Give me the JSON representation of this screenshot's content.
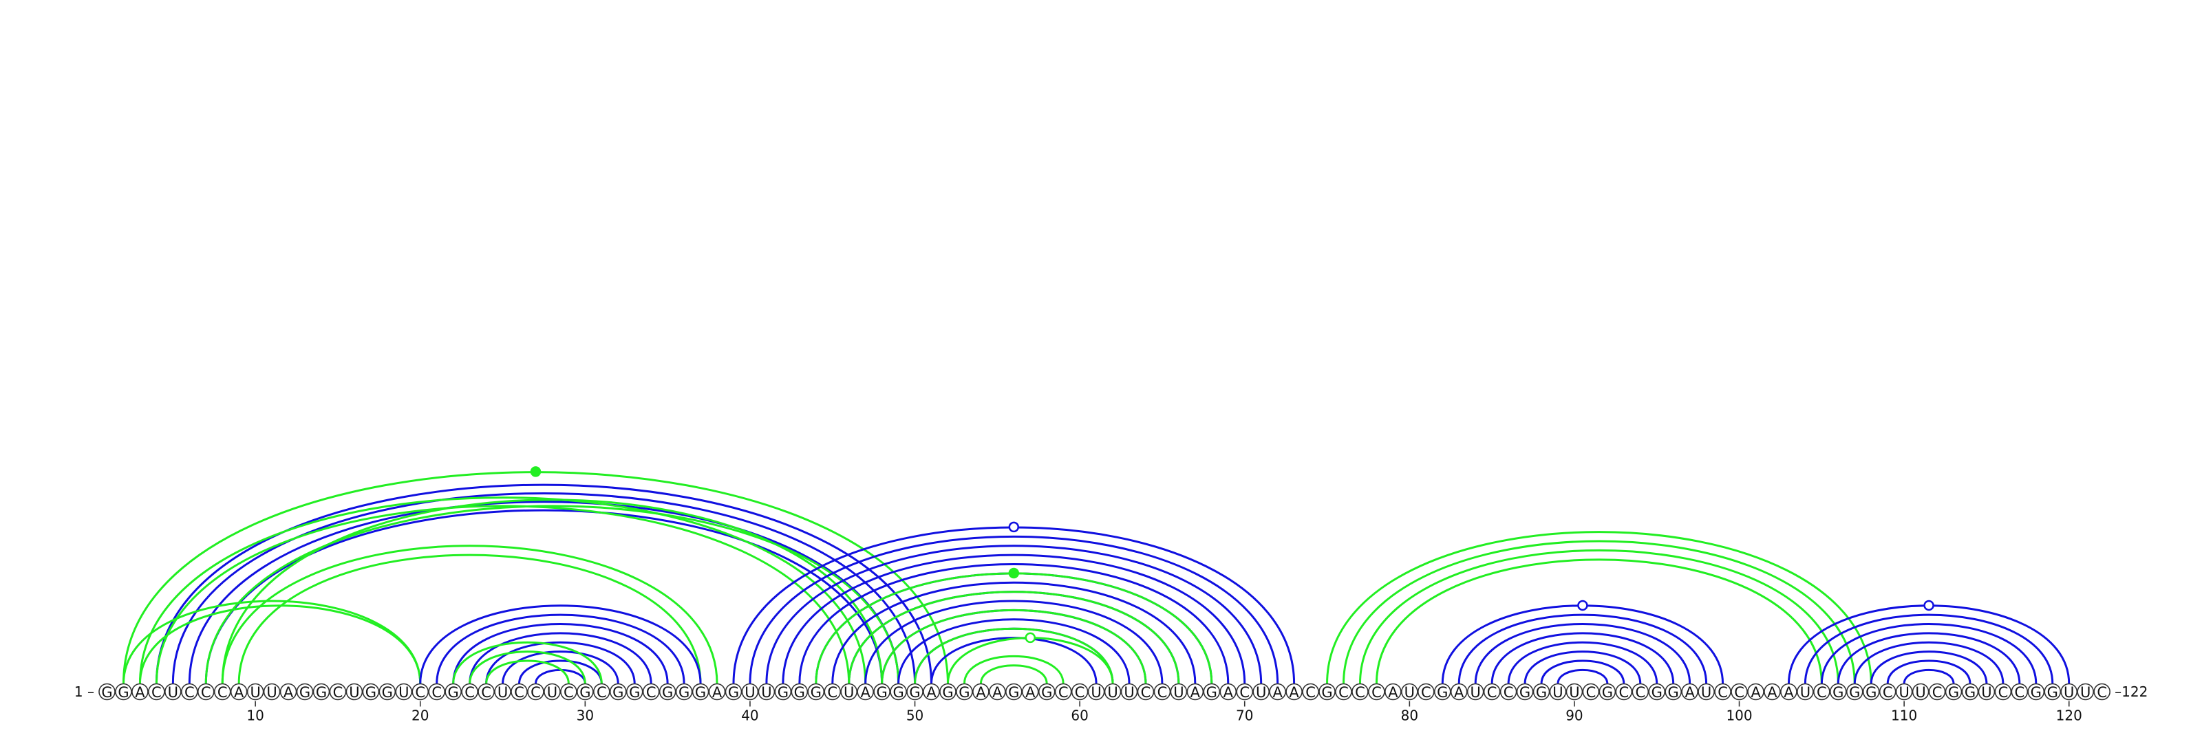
{
  "sequence": "GGACUCCCAUUAGGCUGGUCCGCCUCCUCGCGGCGGGAGUUGGGCUAGGGAGGAAGAGCCUUUCCUAGACUAACGCCCAUCGAUCCGGUUCGCCGGAUCCAAAUCGGGCUUCGGUCCGGUUC",
  "labels": {
    "start": "1 –",
    "end": "–122"
  },
  "ticks": [
    10,
    20,
    30,
    40,
    50,
    60,
    70,
    80,
    90,
    100,
    110,
    120
  ],
  "colors": {
    "blue": "#1010e0",
    "green": "#22ee22"
  },
  "chart_data": {
    "type": "arc",
    "sequence_length": 122,
    "x_ticks": [
      10,
      20,
      30,
      40,
      50,
      60,
      70,
      80,
      90,
      100,
      110,
      120
    ],
    "arcs": [
      {
        "color": "blue",
        "pairs": [
          [
            4,
            51
          ],
          [
            5,
            50
          ],
          [
            6,
            49
          ],
          [
            7,
            48
          ]
        ],
        "hairpin_marker": "none"
      },
      {
        "color": "green",
        "pairs": [
          [
            2,
            52
          ]
        ],
        "hairpin_marker": "filled"
      },
      {
        "color": "green",
        "pairs": [
          [
            3,
            47
          ],
          [
            4,
            46
          ]
        ]
      },
      {
        "color": "green",
        "pairs": [
          [
            7,
            49
          ],
          [
            8,
            48
          ]
        ]
      },
      {
        "color": "green",
        "pairs": [
          [
            8,
            38
          ],
          [
            9,
            37
          ]
        ]
      },
      {
        "color": "green",
        "pairs": [
          [
            2,
            20
          ],
          [
            3,
            20
          ]
        ]
      },
      {
        "color": "blue",
        "pairs": [
          [
            20,
            37
          ],
          [
            21,
            36
          ],
          [
            22,
            35
          ],
          [
            23,
            34
          ],
          [
            24,
            33
          ],
          [
            25,
            32
          ],
          [
            26,
            31
          ],
          [
            27,
            30
          ]
        ]
      },
      {
        "color": "green",
        "pairs": [
          [
            22,
            31
          ],
          [
            23,
            30
          ],
          [
            24,
            29
          ]
        ]
      },
      {
        "color": "blue",
        "pairs": [
          [
            39,
            73
          ],
          [
            40,
            72
          ],
          [
            41,
            71
          ],
          [
            42,
            70
          ],
          [
            43,
            69
          ],
          [
            44,
            68
          ],
          [
            45,
            67
          ],
          [
            46,
            66
          ],
          [
            47,
            65
          ],
          [
            48,
            64
          ],
          [
            49,
            63
          ],
          [
            50,
            62
          ],
          [
            51,
            61
          ]
        ],
        "hairpin_marker": "open"
      },
      {
        "color": "green",
        "pairs": [
          [
            44,
            68
          ],
          [
            46,
            66
          ],
          [
            48,
            64
          ],
          [
            50,
            62
          ]
        ],
        "hairpin_marker": "filled"
      },
      {
        "color": "green",
        "pairs": [
          [
            52,
            62
          ]
        ],
        "hairpin_marker": "open"
      },
      {
        "color": "green",
        "pairs": [
          [
            53,
            59
          ],
          [
            54,
            58
          ]
        ]
      },
      {
        "color": "green",
        "pairs": [
          [
            75,
            108
          ],
          [
            76,
            107
          ],
          [
            77,
            106
          ],
          [
            78,
            105
          ]
        ]
      },
      {
        "color": "blue",
        "pairs": [
          [
            82,
            99
          ],
          [
            83,
            98
          ],
          [
            84,
            97
          ],
          [
            85,
            96
          ],
          [
            86,
            95
          ],
          [
            87,
            94
          ],
          [
            88,
            93
          ],
          [
            89,
            92
          ]
        ],
        "hairpin_marker": "open"
      },
      {
        "color": "blue",
        "pairs": [
          [
            103,
            120
          ],
          [
            104,
            119
          ],
          [
            105,
            118
          ],
          [
            106,
            117
          ],
          [
            107,
            116
          ],
          [
            108,
            115
          ],
          [
            109,
            114
          ],
          [
            110,
            113
          ]
        ],
        "hairpin_marker": "open"
      }
    ]
  }
}
